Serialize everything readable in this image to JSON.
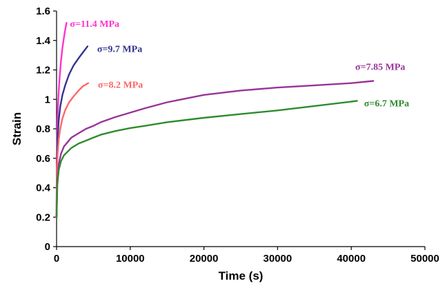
{
  "chart_data": {
    "type": "line",
    "title": "",
    "xlabel": "Time (s)",
    "ylabel": "Strain",
    "xlim": [
      0,
      50000
    ],
    "ylim": [
      0,
      1.6
    ],
    "xticks": [
      0,
      10000,
      20000,
      30000,
      40000,
      50000
    ],
    "yticks": [
      0,
      0.2,
      0.4,
      0.6,
      0.8,
      1,
      1.2,
      1.4,
      1.6
    ],
    "grid": false,
    "legend": "none",
    "series": [
      {
        "name": "σ=11.4 MPa",
        "color": "#ff33cc",
        "x": [
          0,
          30,
          80,
          150,
          250,
          400,
          600,
          800,
          1000,
          1200,
          1350
        ],
        "y": [
          0.2,
          0.58,
          0.75,
          0.9,
          1.02,
          1.14,
          1.26,
          1.35,
          1.42,
          1.48,
          1.52
        ]
      },
      {
        "name": "σ=9.7 MPa",
        "color": "#33338f",
        "x": [
          0,
          50,
          150,
          300,
          500,
          800,
          1200,
          1700,
          2300,
          3000,
          3600,
          4200
        ],
        "y": [
          0.2,
          0.6,
          0.75,
          0.86,
          0.95,
          1.03,
          1.1,
          1.17,
          1.23,
          1.28,
          1.32,
          1.36
        ]
      },
      {
        "name": "σ=8.2 MPa",
        "color": "#ff6666",
        "x": [
          0,
          50,
          150,
          300,
          500,
          800,
          1200,
          1700,
          2300,
          3000,
          3600,
          4300
        ],
        "y": [
          0.2,
          0.52,
          0.64,
          0.73,
          0.8,
          0.87,
          0.93,
          0.98,
          1.02,
          1.06,
          1.09,
          1.11
        ]
      },
      {
        "name": "σ=7.85 MPa",
        "color": "#993399",
        "x": [
          0,
          100,
          300,
          600,
          1000,
          2000,
          3000,
          4000,
          5000,
          6000,
          8000,
          10000,
          12000,
          15000,
          20000,
          25000,
          30000,
          35000,
          40000,
          43000
        ],
        "y": [
          0.2,
          0.45,
          0.56,
          0.63,
          0.68,
          0.74,
          0.77,
          0.8,
          0.82,
          0.845,
          0.88,
          0.91,
          0.94,
          0.98,
          1.03,
          1.06,
          1.08,
          1.095,
          1.11,
          1.125
        ]
      },
      {
        "name": "σ=6.7 MPa",
        "color": "#2e8b2e",
        "x": [
          0,
          100,
          300,
          600,
          1000,
          2000,
          3000,
          4000,
          5000,
          6000,
          8000,
          10000,
          12000,
          15000,
          20000,
          25000,
          30000,
          35000,
          40000,
          40800
        ],
        "y": [
          0.2,
          0.42,
          0.52,
          0.58,
          0.62,
          0.67,
          0.7,
          0.72,
          0.74,
          0.76,
          0.785,
          0.805,
          0.82,
          0.845,
          0.875,
          0.9,
          0.925,
          0.955,
          0.985,
          0.99
        ]
      }
    ]
  }
}
